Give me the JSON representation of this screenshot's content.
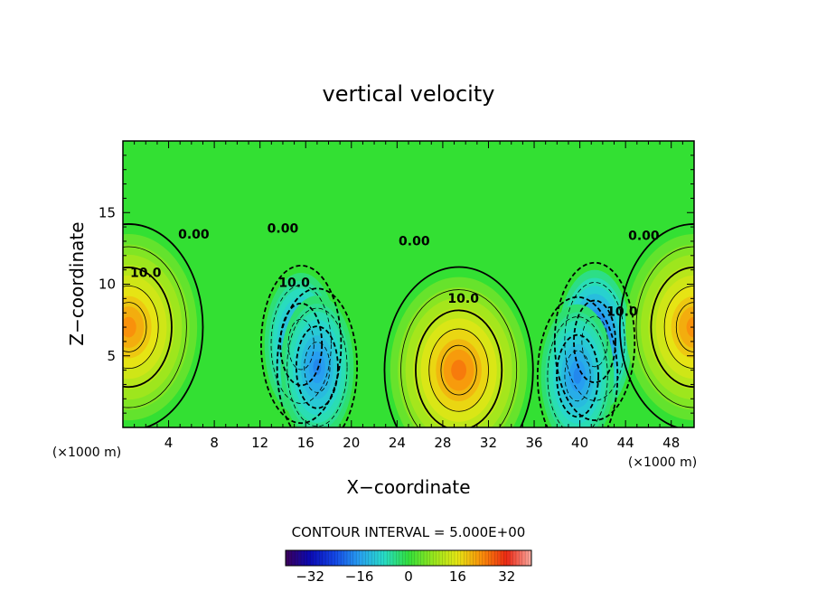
{
  "chart_data": {
    "type": "heatmap",
    "title": "vertical velocity",
    "xlabel": "X−coordinate",
    "ylabel": "Z−coordinate",
    "x_unit": "(×1000 m)",
    "y_unit": "(×1000 m)",
    "xlim": [
      0,
      50
    ],
    "ylim": [
      0,
      20
    ],
    "x_ticks": [
      4,
      8,
      12,
      16,
      20,
      24,
      28,
      32,
      36,
      40,
      44,
      48
    ],
    "y_ticks": [
      5,
      10,
      15
    ],
    "x_tick_labels": [
      "4",
      "8",
      "12",
      "16",
      "20",
      "24",
      "28",
      "32",
      "36",
      "40",
      "44",
      "48"
    ],
    "y_tick_labels": [
      "5",
      "10",
      "15"
    ],
    "contour_interval_label": "CONTOUR INTERVAL = 5.000E+00",
    "contour_interval": 5.0,
    "colorbar": {
      "range": [
        -40,
        40
      ],
      "tick_values": [
        -32,
        -16,
        0,
        16,
        32
      ],
      "tick_labels": [
        "−32",
        "−16",
        "0",
        "16",
        "32"
      ]
    },
    "contour_labels": [
      {
        "text": "0.00",
        "x": 6.2,
        "z": 13.2
      },
      {
        "text": "10.0",
        "x": 2.0,
        "z": 10.5
      },
      {
        "text": "0.00",
        "x": 14.0,
        "z": 13.6
      },
      {
        "text": "10.0",
        "x": 15.0,
        "z": 9.8
      },
      {
        "text": "0.00",
        "x": 25.5,
        "z": 12.7
      },
      {
        "text": "10.0",
        "x": 29.8,
        "z": 8.7
      },
      {
        "text": "10.0",
        "x": 43.7,
        "z": 7.8
      },
      {
        "text": "0.00",
        "x": 45.6,
        "z": 13.1
      }
    ],
    "features": [
      {
        "kind": "updraft",
        "x": 0.5,
        "z": 7.0,
        "peak": 26
      },
      {
        "kind": "downdraft",
        "x": 15.6,
        "z": 5.8,
        "peak": -22
      },
      {
        "kind": "downdraft",
        "x": 17.0,
        "z": 4.2,
        "peak": -20
      },
      {
        "kind": "updraft",
        "x": 29.4,
        "z": 4.0,
        "peak": 28
      },
      {
        "kind": "downdraft",
        "x": 41.3,
        "z": 6.0,
        "peak": -28
      },
      {
        "kind": "downdraft",
        "x": 39.8,
        "z": 3.6,
        "peak": -20
      },
      {
        "kind": "updraft",
        "x": 50.0,
        "z": 7.0,
        "peak": 26
      }
    ]
  }
}
